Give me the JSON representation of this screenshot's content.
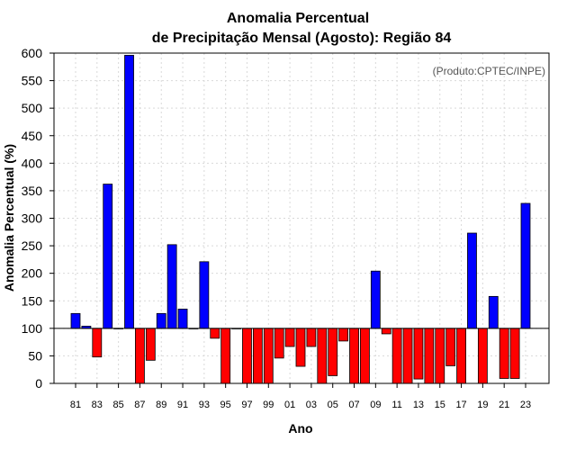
{
  "chart_data": {
    "type": "bar",
    "title_line1": "Anomalia Percentual",
    "title_line2": "de Precipitação Mensal (Agosto): Região 84",
    "xlabel": "Ano",
    "ylabel": "Anomalia Percentual (%)",
    "credit": "(Produto:CPTEC/INPE)",
    "ylim": [
      0,
      600
    ],
    "yticks": [
      0,
      50,
      100,
      150,
      200,
      250,
      300,
      350,
      400,
      450,
      500,
      550,
      600
    ],
    "baseline": 100,
    "grid": true,
    "categories": [
      "81",
      "82",
      "83",
      "84",
      "85",
      "86",
      "87",
      "88",
      "89",
      "90",
      "91",
      "92",
      "93",
      "94",
      "95",
      "96",
      "97",
      "98",
      "99",
      "00",
      "01",
      "02",
      "03",
      "04",
      "05",
      "06",
      "07",
      "08",
      "09",
      "10",
      "11",
      "12",
      "13",
      "14",
      "15",
      "16",
      "17",
      "18",
      "19",
      "20",
      "21",
      "22",
      "23"
    ],
    "xtick_labels": [
      "81",
      "83",
      "85",
      "87",
      "89",
      "91",
      "93",
      "95",
      "97",
      "99",
      "01",
      "03",
      "05",
      "07",
      "09",
      "11",
      "13",
      "15",
      "17",
      "19",
      "21",
      "23"
    ],
    "values": [
      127,
      104,
      48,
      362,
      100,
      596,
      0,
      42,
      127,
      252,
      135,
      100,
      221,
      82,
      0,
      100,
      0,
      0,
      0,
      46,
      67,
      31,
      67,
      0,
      14,
      77,
      0,
      0,
      204,
      90,
      0,
      0,
      8,
      0,
      0,
      32,
      0,
      273,
      0,
      158,
      9,
      9,
      327
    ],
    "colors": {
      "positive": "#0000ff",
      "negative": "#ff0000"
    }
  }
}
